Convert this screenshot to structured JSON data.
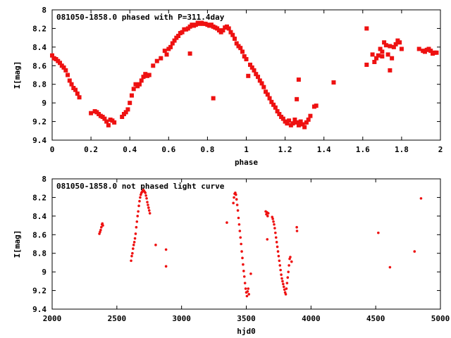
{
  "chart_data": [
    {
      "type": "scatter",
      "title": "081050-1858.0 phased with P=311.4day",
      "xlabel": "phase",
      "ylabel": "I[mag]",
      "xlim": [
        0,
        2
      ],
      "ylim": [
        9.4,
        8.0
      ],
      "y_inverted": true,
      "x_ticks": [
        0,
        0.2,
        0.4,
        0.6,
        0.8,
        1,
        1.2,
        1.4,
        1.6,
        1.8,
        2
      ],
      "y_ticks": [
        8,
        8.2,
        8.4,
        8.6,
        8.8,
        9,
        9.2,
        9.4
      ],
      "marker": "square",
      "color": "#ee1111",
      "points": [
        [
          0.0,
          8.49
        ],
        [
          0.01,
          8.52
        ],
        [
          0.02,
          8.53
        ],
        [
          0.03,
          8.55
        ],
        [
          0.04,
          8.57
        ],
        [
          0.05,
          8.6
        ],
        [
          0.06,
          8.62
        ],
        [
          0.07,
          8.65
        ],
        [
          0.08,
          8.7
        ],
        [
          0.09,
          8.76
        ],
        [
          0.1,
          8.8
        ],
        [
          0.11,
          8.84
        ],
        [
          0.12,
          8.86
        ],
        [
          0.13,
          8.9
        ],
        [
          0.14,
          8.94
        ],
        [
          0.2,
          9.11
        ],
        [
          0.22,
          9.09
        ],
        [
          0.23,
          9.1
        ],
        [
          0.24,
          9.12
        ],
        [
          0.25,
          9.14
        ],
        [
          0.26,
          9.15
        ],
        [
          0.27,
          9.17
        ],
        [
          0.28,
          9.2
        ],
        [
          0.29,
          9.24
        ],
        [
          0.3,
          9.18
        ],
        [
          0.31,
          9.19
        ],
        [
          0.32,
          9.21
        ],
        [
          0.36,
          9.15
        ],
        [
          0.37,
          9.12
        ],
        [
          0.38,
          9.1
        ],
        [
          0.39,
          9.07
        ],
        [
          0.4,
          9.0
        ],
        [
          0.41,
          8.92
        ],
        [
          0.42,
          8.85
        ],
        [
          0.43,
          8.8
        ],
        [
          0.44,
          8.82
        ],
        [
          0.45,
          8.8
        ],
        [
          0.46,
          8.76
        ],
        [
          0.47,
          8.72
        ],
        [
          0.48,
          8.69
        ],
        [
          0.49,
          8.71
        ],
        [
          0.5,
          8.7
        ],
        [
          0.52,
          8.6
        ],
        [
          0.54,
          8.55
        ],
        [
          0.56,
          8.52
        ],
        [
          0.58,
          8.44
        ],
        [
          0.59,
          8.48
        ],
        [
          0.6,
          8.42
        ],
        [
          0.61,
          8.4
        ],
        [
          0.62,
          8.36
        ],
        [
          0.63,
          8.33
        ],
        [
          0.64,
          8.3
        ],
        [
          0.65,
          8.28
        ],
        [
          0.66,
          8.25
        ],
        [
          0.67,
          8.24
        ],
        [
          0.68,
          8.21
        ],
        [
          0.69,
          8.21
        ],
        [
          0.7,
          8.2
        ],
        [
          0.71,
          8.18
        ],
        [
          0.72,
          8.16
        ],
        [
          0.73,
          8.17
        ],
        [
          0.74,
          8.16
        ],
        [
          0.75,
          8.14
        ],
        [
          0.76,
          8.15
        ],
        [
          0.77,
          8.14
        ],
        [
          0.78,
          8.15
        ],
        [
          0.79,
          8.15
        ],
        [
          0.8,
          8.16
        ],
        [
          0.81,
          8.17
        ],
        [
          0.82,
          8.16
        ],
        [
          0.83,
          8.18
        ],
        [
          0.84,
          8.19
        ],
        [
          0.85,
          8.2
        ],
        [
          0.86,
          8.22
        ],
        [
          0.87,
          8.24
        ],
        [
          0.88,
          8.22
        ],
        [
          0.89,
          8.19
        ],
        [
          0.9,
          8.18
        ],
        [
          0.91,
          8.2
        ],
        [
          0.92,
          8.24
        ],
        [
          0.93,
          8.27
        ],
        [
          0.94,
          8.31
        ],
        [
          0.95,
          8.36
        ],
        [
          0.96,
          8.39
        ],
        [
          0.97,
          8.41
        ],
        [
          0.98,
          8.45
        ],
        [
          0.99,
          8.5
        ],
        [
          1.0,
          8.53
        ],
        [
          1.02,
          8.59
        ],
        [
          1.03,
          8.62
        ],
        [
          1.04,
          8.65
        ],
        [
          1.05,
          8.69
        ],
        [
          1.06,
          8.72
        ],
        [
          1.07,
          8.76
        ],
        [
          1.08,
          8.79
        ],
        [
          1.09,
          8.83
        ],
        [
          1.1,
          8.88
        ],
        [
          1.11,
          8.91
        ],
        [
          1.12,
          8.95
        ],
        [
          1.13,
          8.99
        ],
        [
          1.14,
          9.02
        ],
        [
          1.15,
          9.05
        ],
        [
          1.16,
          9.09
        ],
        [
          1.17,
          9.12
        ],
        [
          1.18,
          9.15
        ],
        [
          1.19,
          9.17
        ],
        [
          1.2,
          9.2
        ],
        [
          1.21,
          9.22
        ],
        [
          1.22,
          9.19
        ],
        [
          1.23,
          9.24
        ],
        [
          1.24,
          9.22
        ],
        [
          1.25,
          9.18
        ],
        [
          1.26,
          9.21
        ],
        [
          1.27,
          9.24
        ],
        [
          1.28,
          9.2
        ],
        [
          1.29,
          9.23
        ],
        [
          1.3,
          9.26
        ],
        [
          1.31,
          9.21
        ],
        [
          1.32,
          9.18
        ],
        [
          1.33,
          9.14
        ],
        [
          0.71,
          8.47
        ],
        [
          0.83,
          8.95
        ],
        [
          1.01,
          8.71
        ],
        [
          1.27,
          8.75
        ],
        [
          1.26,
          8.96
        ],
        [
          1.35,
          9.04
        ],
        [
          1.36,
          9.03
        ],
        [
          1.45,
          8.78
        ],
        [
          1.62,
          8.2
        ],
        [
          1.62,
          8.59
        ],
        [
          1.65,
          8.48
        ],
        [
          1.66,
          8.56
        ],
        [
          1.67,
          8.52
        ],
        [
          1.68,
          8.49
        ],
        [
          1.69,
          8.42
        ],
        [
          1.7,
          8.45
        ],
        [
          1.7,
          8.5
        ],
        [
          1.71,
          8.35
        ],
        [
          1.72,
          8.38
        ],
        [
          1.73,
          8.48
        ],
        [
          1.74,
          8.39
        ],
        [
          1.74,
          8.65
        ],
        [
          1.75,
          8.52
        ],
        [
          1.76,
          8.4
        ],
        [
          1.77,
          8.37
        ],
        [
          1.78,
          8.33
        ],
        [
          1.79,
          8.35
        ],
        [
          1.8,
          8.42
        ],
        [
          1.89,
          8.42
        ],
        [
          1.91,
          8.44
        ],
        [
          1.92,
          8.45
        ],
        [
          1.93,
          8.43
        ],
        [
          1.94,
          8.42
        ],
        [
          1.95,
          8.44
        ],
        [
          1.96,
          8.47
        ],
        [
          1.97,
          8.46
        ],
        [
          1.98,
          8.46
        ]
      ]
    },
    {
      "type": "scatter",
      "title": "081050-1858.0 not phased light curve",
      "xlabel": "hjd0",
      "ylabel": "I[mag]",
      "xlim": [
        2000,
        5000
      ],
      "ylim": [
        9.4,
        8.0
      ],
      "y_inverted": true,
      "x_ticks": [
        2000,
        2500,
        3000,
        3500,
        4000,
        4500,
        5000
      ],
      "y_ticks": [
        8,
        8.2,
        8.4,
        8.6,
        8.8,
        9,
        9.2,
        9.4
      ],
      "marker": "dot",
      "color": "#ee1111",
      "points": [
        [
          2365,
          8.59
        ],
        [
          2370,
          8.57
        ],
        [
          2375,
          8.55
        ],
        [
          2380,
          8.52
        ],
        [
          2385,
          8.49
        ],
        [
          2388,
          8.48
        ],
        [
          2392,
          8.5
        ],
        [
          2610,
          8.88
        ],
        [
          2615,
          8.83
        ],
        [
          2620,
          8.8
        ],
        [
          2625,
          8.75
        ],
        [
          2630,
          8.71
        ],
        [
          2635,
          8.68
        ],
        [
          2640,
          8.64
        ],
        [
          2645,
          8.59
        ],
        [
          2650,
          8.52
        ],
        [
          2655,
          8.46
        ],
        [
          2660,
          8.4
        ],
        [
          2665,
          8.35
        ],
        [
          2670,
          8.29
        ],
        [
          2675,
          8.24
        ],
        [
          2680,
          8.2
        ],
        [
          2685,
          8.17
        ],
        [
          2690,
          8.15
        ],
        [
          2695,
          8.14
        ],
        [
          2700,
          8.13
        ],
        [
          2705,
          8.12
        ],
        [
          2710,
          8.13
        ],
        [
          2715,
          8.14
        ],
        [
          2720,
          8.15
        ],
        [
          2725,
          8.18
        ],
        [
          2730,
          8.21
        ],
        [
          2735,
          8.25
        ],
        [
          2740,
          8.28
        ],
        [
          2745,
          8.31
        ],
        [
          2750,
          8.34
        ],
        [
          2755,
          8.37
        ],
        [
          2800,
          8.71
        ],
        [
          2880,
          8.76
        ],
        [
          2880,
          8.94
        ],
        [
          3350,
          8.47
        ],
        [
          3400,
          8.26
        ],
        [
          3405,
          8.2
        ],
        [
          3410,
          8.16
        ],
        [
          3415,
          8.15
        ],
        [
          3420,
          8.17
        ],
        [
          3425,
          8.22
        ],
        [
          3430,
          8.28
        ],
        [
          3435,
          8.34
        ],
        [
          3440,
          8.42
        ],
        [
          3445,
          8.49
        ],
        [
          3450,
          8.56
        ],
        [
          3455,
          8.63
        ],
        [
          3460,
          8.7
        ],
        [
          3465,
          8.78
        ],
        [
          3470,
          8.85
        ],
        [
          3475,
          8.92
        ],
        [
          3480,
          8.99
        ],
        [
          3485,
          9.05
        ],
        [
          3490,
          9.12
        ],
        [
          3495,
          9.18
        ],
        [
          3500,
          9.22
        ],
        [
          3505,
          9.26
        ],
        [
          3510,
          9.21
        ],
        [
          3515,
          9.18
        ],
        [
          3520,
          9.24
        ],
        [
          3535,
          9.02
        ],
        [
          3650,
          8.35
        ],
        [
          3655,
          8.38
        ],
        [
          3660,
          8.36
        ],
        [
          3665,
          8.4
        ],
        [
          3670,
          8.37
        ],
        [
          3662,
          8.65
        ],
        [
          3700,
          8.41
        ],
        [
          3705,
          8.43
        ],
        [
          3710,
          8.46
        ],
        [
          3715,
          8.49
        ],
        [
          3720,
          8.53
        ],
        [
          3725,
          8.58
        ],
        [
          3730,
          8.63
        ],
        [
          3735,
          8.68
        ],
        [
          3740,
          8.73
        ],
        [
          3745,
          8.78
        ],
        [
          3750,
          8.83
        ],
        [
          3755,
          8.88
        ],
        [
          3760,
          8.93
        ],
        [
          3765,
          8.98
        ],
        [
          3770,
          9.03
        ],
        [
          3775,
          9.07
        ],
        [
          3780,
          9.1
        ],
        [
          3785,
          9.13
        ],
        [
          3790,
          9.16
        ],
        [
          3795,
          9.19
        ],
        [
          3800,
          9.22
        ],
        [
          3805,
          9.24
        ],
        [
          3810,
          9.18
        ],
        [
          3815,
          9.12
        ],
        [
          3820,
          9.06
        ],
        [
          3825,
          9.0
        ],
        [
          3830,
          8.93
        ],
        [
          3835,
          8.86
        ],
        [
          3840,
          8.84
        ],
        [
          3850,
          8.89
        ],
        [
          3890,
          8.52
        ],
        [
          3892,
          8.56
        ],
        [
          4520,
          8.58
        ],
        [
          4610,
          8.95
        ],
        [
          4800,
          8.78
        ],
        [
          4850,
          8.21
        ]
      ]
    }
  ]
}
